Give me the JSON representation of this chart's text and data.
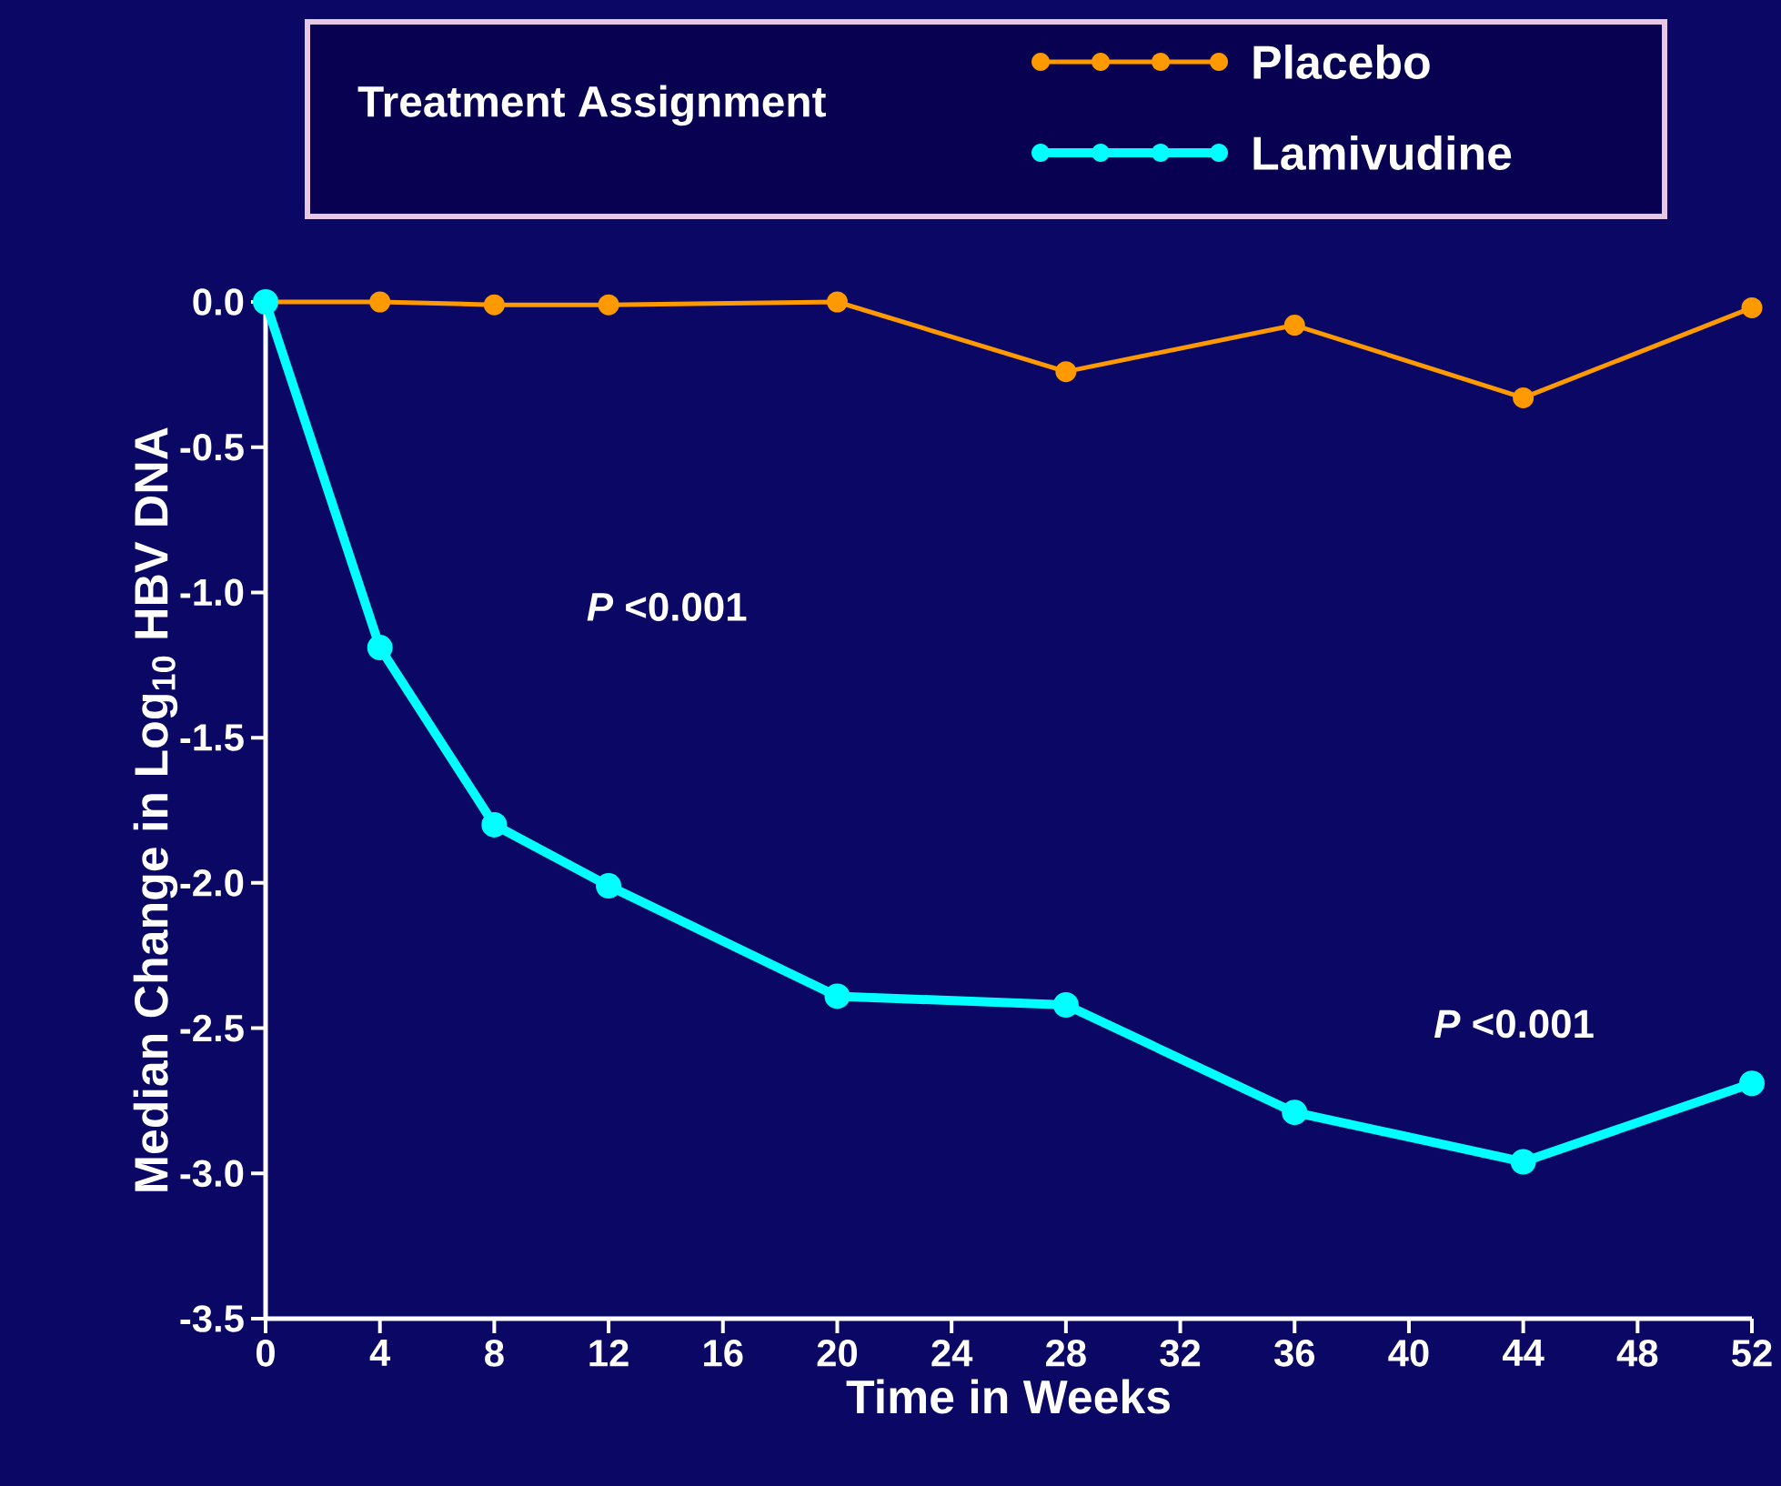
{
  "chart_data": {
    "type": "line",
    "xlabel": "Time in Weeks",
    "ylabel": "Median Change in Log$_{10}$ HBV DNA",
    "legend_title": "Treatment Assignment",
    "legend": "top",
    "marker": "circle",
    "line_style": "solid",
    "x": [
      0,
      4,
      8,
      12,
      20,
      28,
      36,
      44,
      52
    ],
    "series": [
      {
        "name": "Placebo",
        "color": "#ff9900",
        "values": [
          0,
          0,
          -0.01,
          -0.01,
          0,
          -0.24,
          -0.08,
          -0.33,
          -0.02
        ]
      },
      {
        "name": "Lamivudine",
        "color": "#00ffff",
        "values": [
          0,
          -1.19,
          -1.8,
          -2.01,
          -2.39,
          -2.42,
          -2.79,
          -2.96,
          -2.69
        ]
      }
    ],
    "xlim": [
      0,
      52
    ],
    "xticks": [
      0,
      4,
      8,
      12,
      16,
      20,
      24,
      28,
      32,
      36,
      40,
      44,
      48,
      52
    ],
    "ylim": [
      -3.5,
      0
    ],
    "yticks": [
      {
        "value": 0,
        "label": "0.0"
      },
      -0.5,
      {
        "value": -1,
        "label": "-1.0"
      },
      -1.5,
      {
        "value": -2,
        "label": "-2.0"
      },
      -2.5,
      {
        "value": -3,
        "label": "-3.0"
      },
      -3.5
    ],
    "annotations": [
      "*P* <0.001",
      "*P* <0.001"
    ]
  }
}
